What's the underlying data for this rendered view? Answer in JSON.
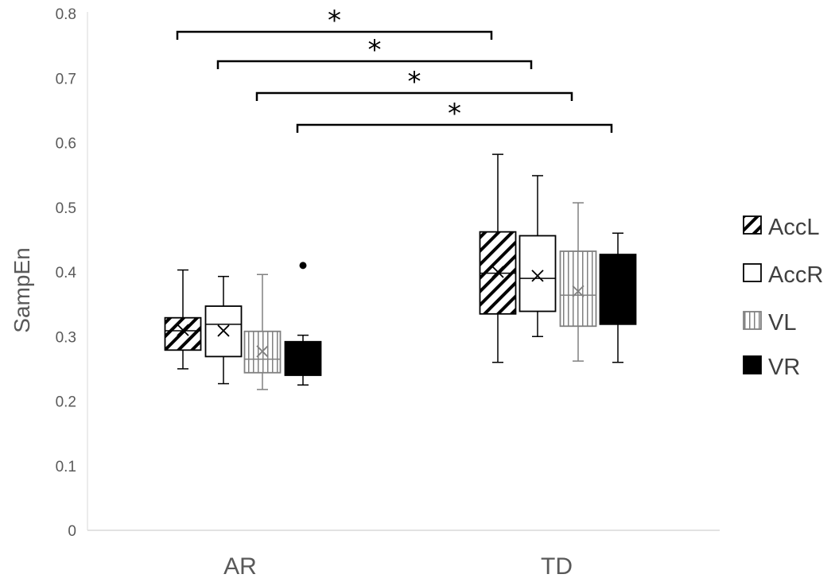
{
  "chart_data": {
    "type": "box",
    "ylabel": "SampEn",
    "xlabel": "",
    "ylim": [
      0,
      0.8
    ],
    "yticks": [
      "0",
      "0.1",
      "0.2",
      "0.3",
      "0.4",
      "0.5",
      "0.6",
      "0.7",
      "0.8"
    ],
    "categories": [
      "AR",
      "TD"
    ],
    "grid": false,
    "legend_position": "right",
    "series": [
      {
        "name": "AccL",
        "pattern": "diagonal-hatch",
        "color": "#000000",
        "boxes": [
          {
            "category": "AR",
            "min": 0.25,
            "q1": 0.279,
            "median": 0.309,
            "q3": 0.329,
            "max": 0.403,
            "mean": 0.31,
            "outliers": []
          },
          {
            "category": "TD",
            "min": 0.26,
            "q1": 0.335,
            "median": 0.398,
            "q3": 0.462,
            "max": 0.582,
            "mean": 0.4,
            "outliers": []
          }
        ]
      },
      {
        "name": "AccR",
        "pattern": "solid-white",
        "color": "#000000",
        "boxes": [
          {
            "category": "AR",
            "min": 0.227,
            "q1": 0.269,
            "median": 0.319,
            "q3": 0.347,
            "max": 0.393,
            "mean": 0.309,
            "outliers": []
          },
          {
            "category": "TD",
            "min": 0.3,
            "q1": 0.339,
            "median": 0.39,
            "q3": 0.456,
            "max": 0.549,
            "mean": 0.394,
            "outliers": []
          }
        ]
      },
      {
        "name": "VL",
        "pattern": "vertical-hatch",
        "color": "#808080",
        "boxes": [
          {
            "category": "AR",
            "min": 0.218,
            "q1": 0.244,
            "median": 0.265,
            "q3": 0.308,
            "max": 0.396,
            "mean": 0.277,
            "outliers": []
          },
          {
            "category": "TD",
            "min": 0.262,
            "q1": 0.316,
            "median": 0.364,
            "q3": 0.432,
            "max": 0.507,
            "mean": 0.37,
            "outliers": []
          }
        ]
      },
      {
        "name": "VR",
        "pattern": "solid-black",
        "color": "#000000",
        "boxes": [
          {
            "category": "AR",
            "min": 0.225,
            "q1": 0.24,
            "median": 0.265,
            "q3": 0.292,
            "max": 0.302,
            "mean": 0.27,
            "outliers": [
              0.41
            ]
          },
          {
            "category": "TD",
            "min": 0.26,
            "q1": 0.319,
            "median": 0.375,
            "q3": 0.427,
            "max": 0.46,
            "mean": 0.375,
            "outliers": []
          }
        ]
      }
    ],
    "annotations": [
      {
        "text": "*",
        "from": "AR AccL",
        "to": "TD AccL"
      },
      {
        "text": "*",
        "from": "AR AccR",
        "to": "TD AccR"
      },
      {
        "text": "*",
        "from": "AR VL",
        "to": "TD VL"
      },
      {
        "text": "*",
        "from": "AR VR",
        "to": "TD VR"
      }
    ]
  }
}
